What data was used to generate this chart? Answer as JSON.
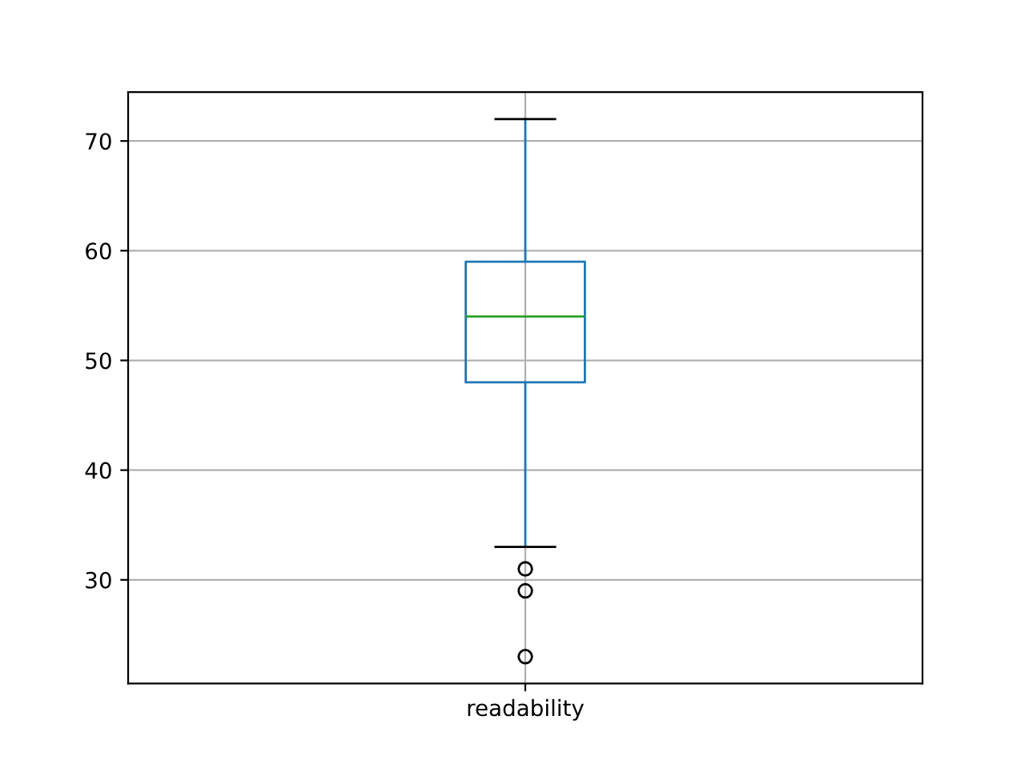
{
  "chart_data": {
    "type": "box",
    "categories": [
      "readability"
    ],
    "boxes": [
      {
        "low": 33,
        "q1": 48,
        "median": 54,
        "q3": 59,
        "high": 72,
        "outliers": [
          31,
          29,
          23
        ]
      }
    ],
    "color": "#1f77b4",
    "marker": "circle",
    "ylim": [
      20.55,
      74.45
    ],
    "yticks": [
      30,
      40,
      50,
      60,
      70
    ],
    "grid": true
  }
}
